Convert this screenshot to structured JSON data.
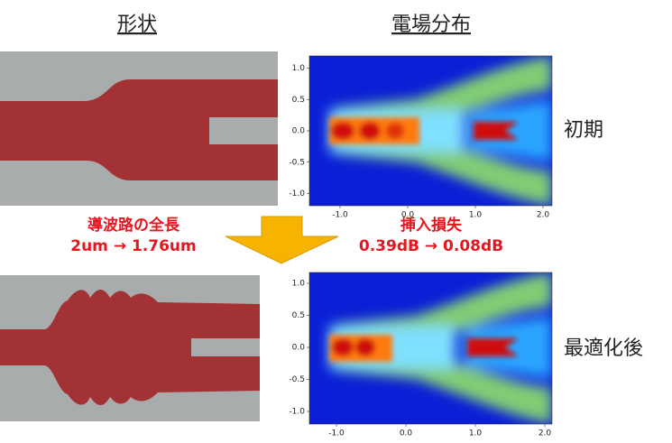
{
  "headers": {
    "shape": "形状",
    "field": "電場分布"
  },
  "rows": [
    {
      "label": "初期"
    },
    {
      "label": "最適化後"
    }
  ],
  "annotations": {
    "length_title": "導波路の全長",
    "length_change": "2um → 1.76um",
    "loss_title": "挿入損失",
    "loss_change": "0.39dB → 0.08dB"
  },
  "field_axes": {
    "xticks": [
      {
        "value": -1,
        "label": "-1.0"
      },
      {
        "value": 0,
        "label": "0.0"
      },
      {
        "value": 1,
        "label": "1.0"
      },
      {
        "value": 2,
        "label": "2.0"
      }
    ],
    "yticks": [
      {
        "value": 1,
        "label": "1.0"
      },
      {
        "value": 0.5,
        "label": "0.5"
      },
      {
        "value": 0,
        "label": "0.0"
      },
      {
        "value": -0.5,
        "label": "-0.5"
      },
      {
        "value": -1,
        "label": "-1.0"
      }
    ]
  }
}
